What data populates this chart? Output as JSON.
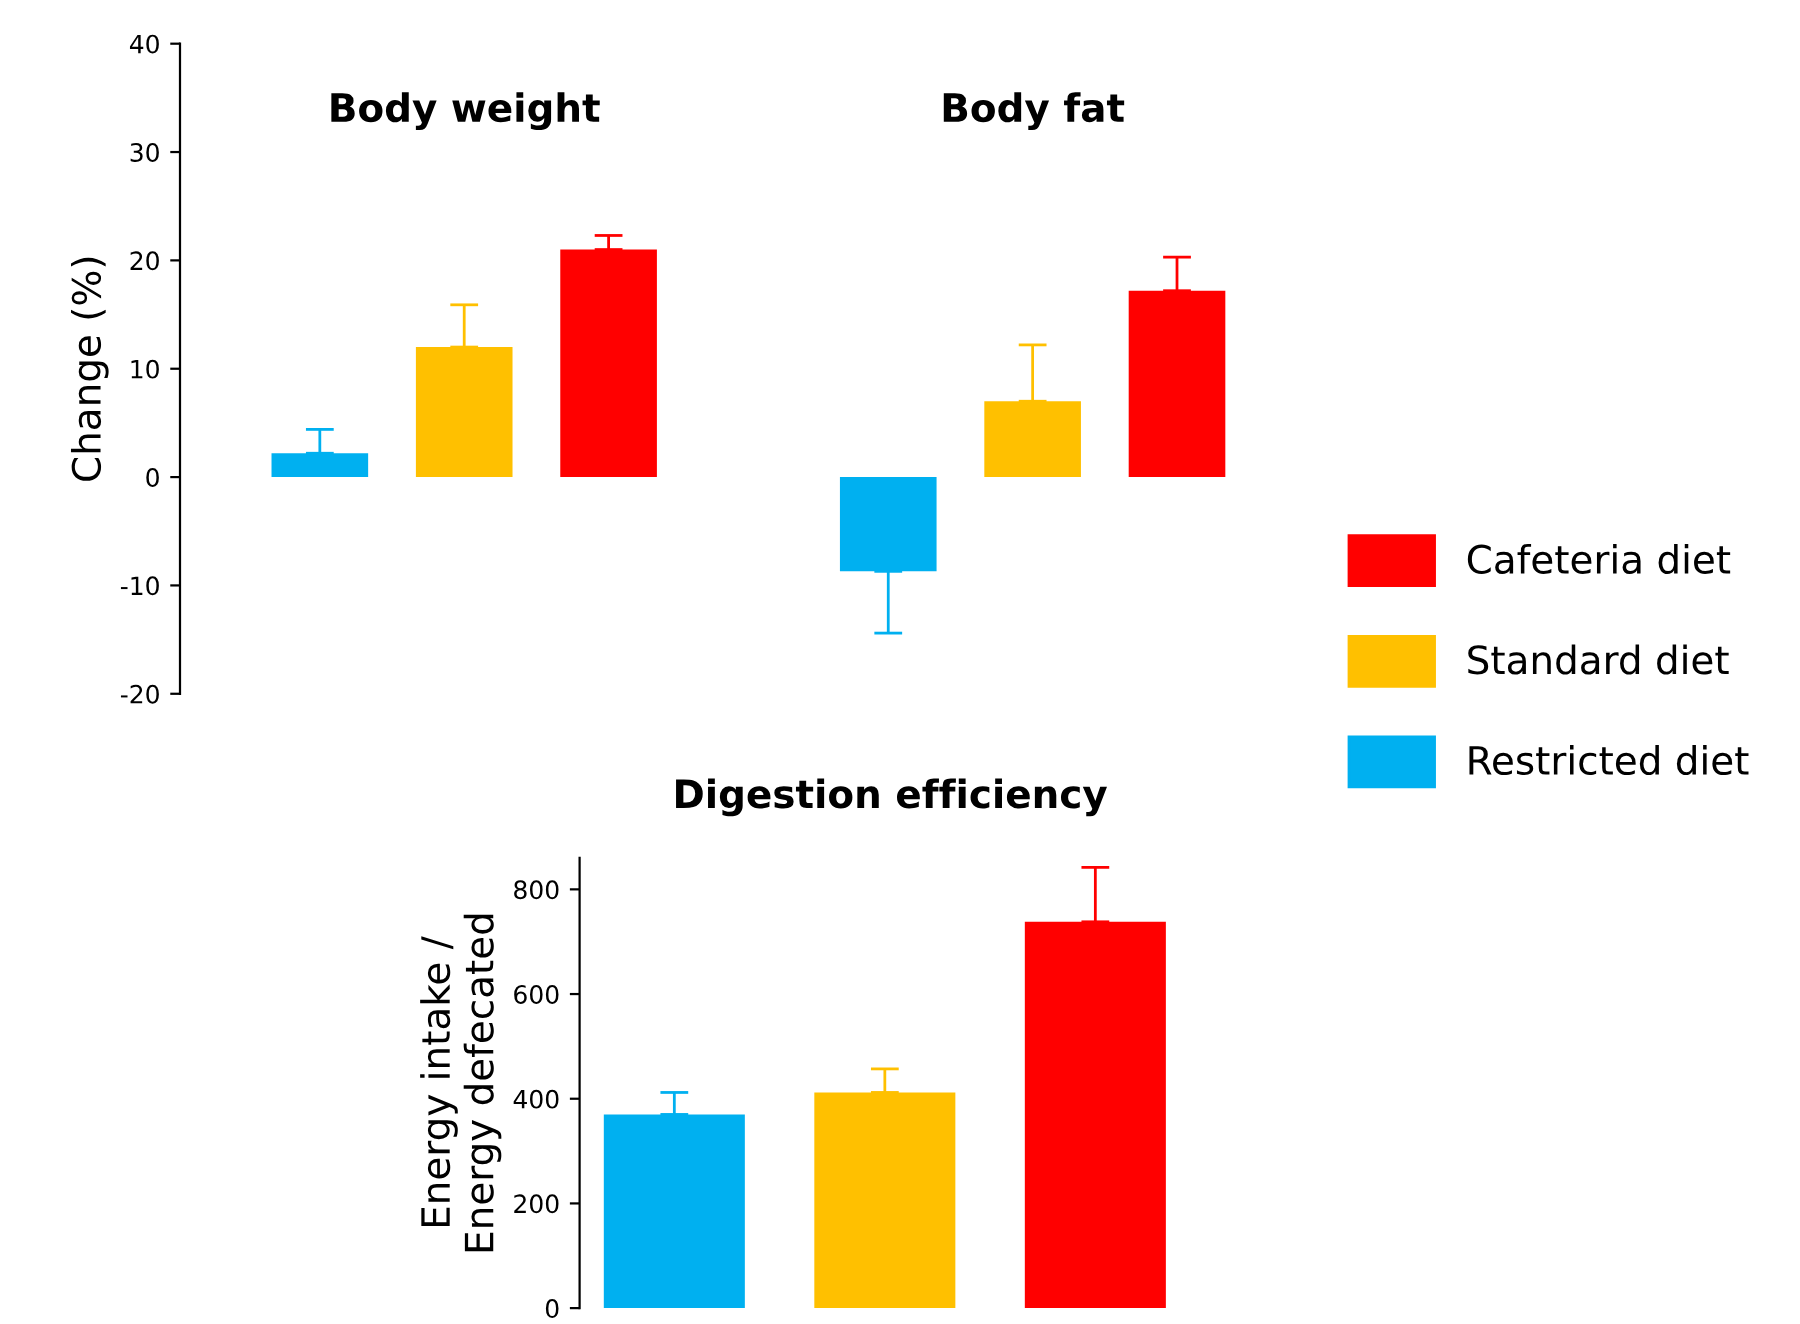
{
  "chart_data": [
    {
      "type": "bar",
      "ylabel": "Change (%)",
      "categories": [
        "Body weight",
        "Body fat"
      ],
      "ylim": [
        -20,
        40
      ],
      "yticks": [
        -20,
        -10,
        0,
        10,
        20,
        30,
        40
      ],
      "grid": false,
      "legend": "right",
      "series": [
        {
          "name": "Restricted diet",
          "color": "#00b0f0",
          "values": [
            2.2,
            -8.7
          ],
          "errors": [
            [
              2.2,
              4.4
            ],
            [
              -14.4,
              -8.7
            ]
          ]
        },
        {
          "name": "Standard diet",
          "color": "#ffc000",
          "values": [
            12,
            7
          ],
          "errors": [
            [
              12,
              15.9
            ],
            [
              7,
              12.2
            ]
          ]
        },
        {
          "name": "Cafeteria diet",
          "color": "#ff0000",
          "values": [
            21,
            17.2
          ],
          "errors": [
            [
              21,
              22.3
            ],
            [
              17.2,
              20.3
            ]
          ]
        }
      ]
    },
    {
      "type": "bar",
      "title": "Digestion efficiency",
      "ylabel": "Energy intake /\nEnergy defecated",
      "categories": [
        null,
        null,
        null
      ],
      "ylim": [
        0,
        860
      ],
      "yticks": [
        0,
        200,
        400,
        600,
        800
      ],
      "grid": false,
      "values": [
        370,
        412,
        738
      ],
      "colors": [
        "#00b0f0",
        "#ffc000",
        "#ff0000"
      ],
      "errors": [
        [
          370,
          412
        ],
        [
          412,
          457
        ],
        [
          738,
          842
        ]
      ]
    }
  ]
}
